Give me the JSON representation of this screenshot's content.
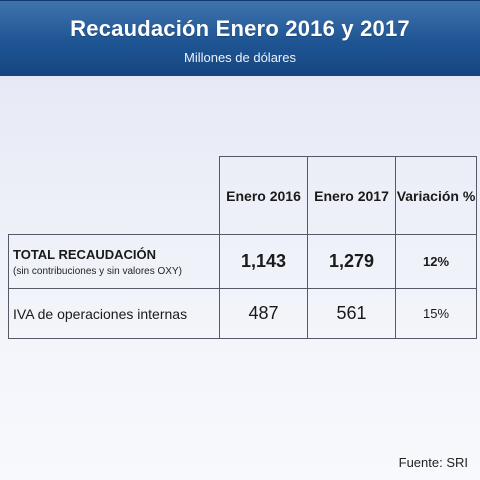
{
  "header": {
    "title": "Recaudación Enero 2016 y 2017",
    "subtitle": "Millones de dólares"
  },
  "table": {
    "columns": [
      "Enero 2016",
      "Enero 2017",
      "Variación %"
    ],
    "rows": [
      {
        "label": "TOTAL RECAUDACIÓN",
        "sublabel": "(sin contribuciones y sin valores OXY)",
        "values": [
          "1,143",
          "1,279",
          "12%"
        ]
      },
      {
        "label": "IVA de operaciones internas",
        "values": [
          "487",
          "561",
          "15%"
        ]
      }
    ]
  },
  "footer": {
    "source": "Fuente: SRI"
  },
  "colors": {
    "header_blue": "#1f5594",
    "border": "#555a66"
  }
}
